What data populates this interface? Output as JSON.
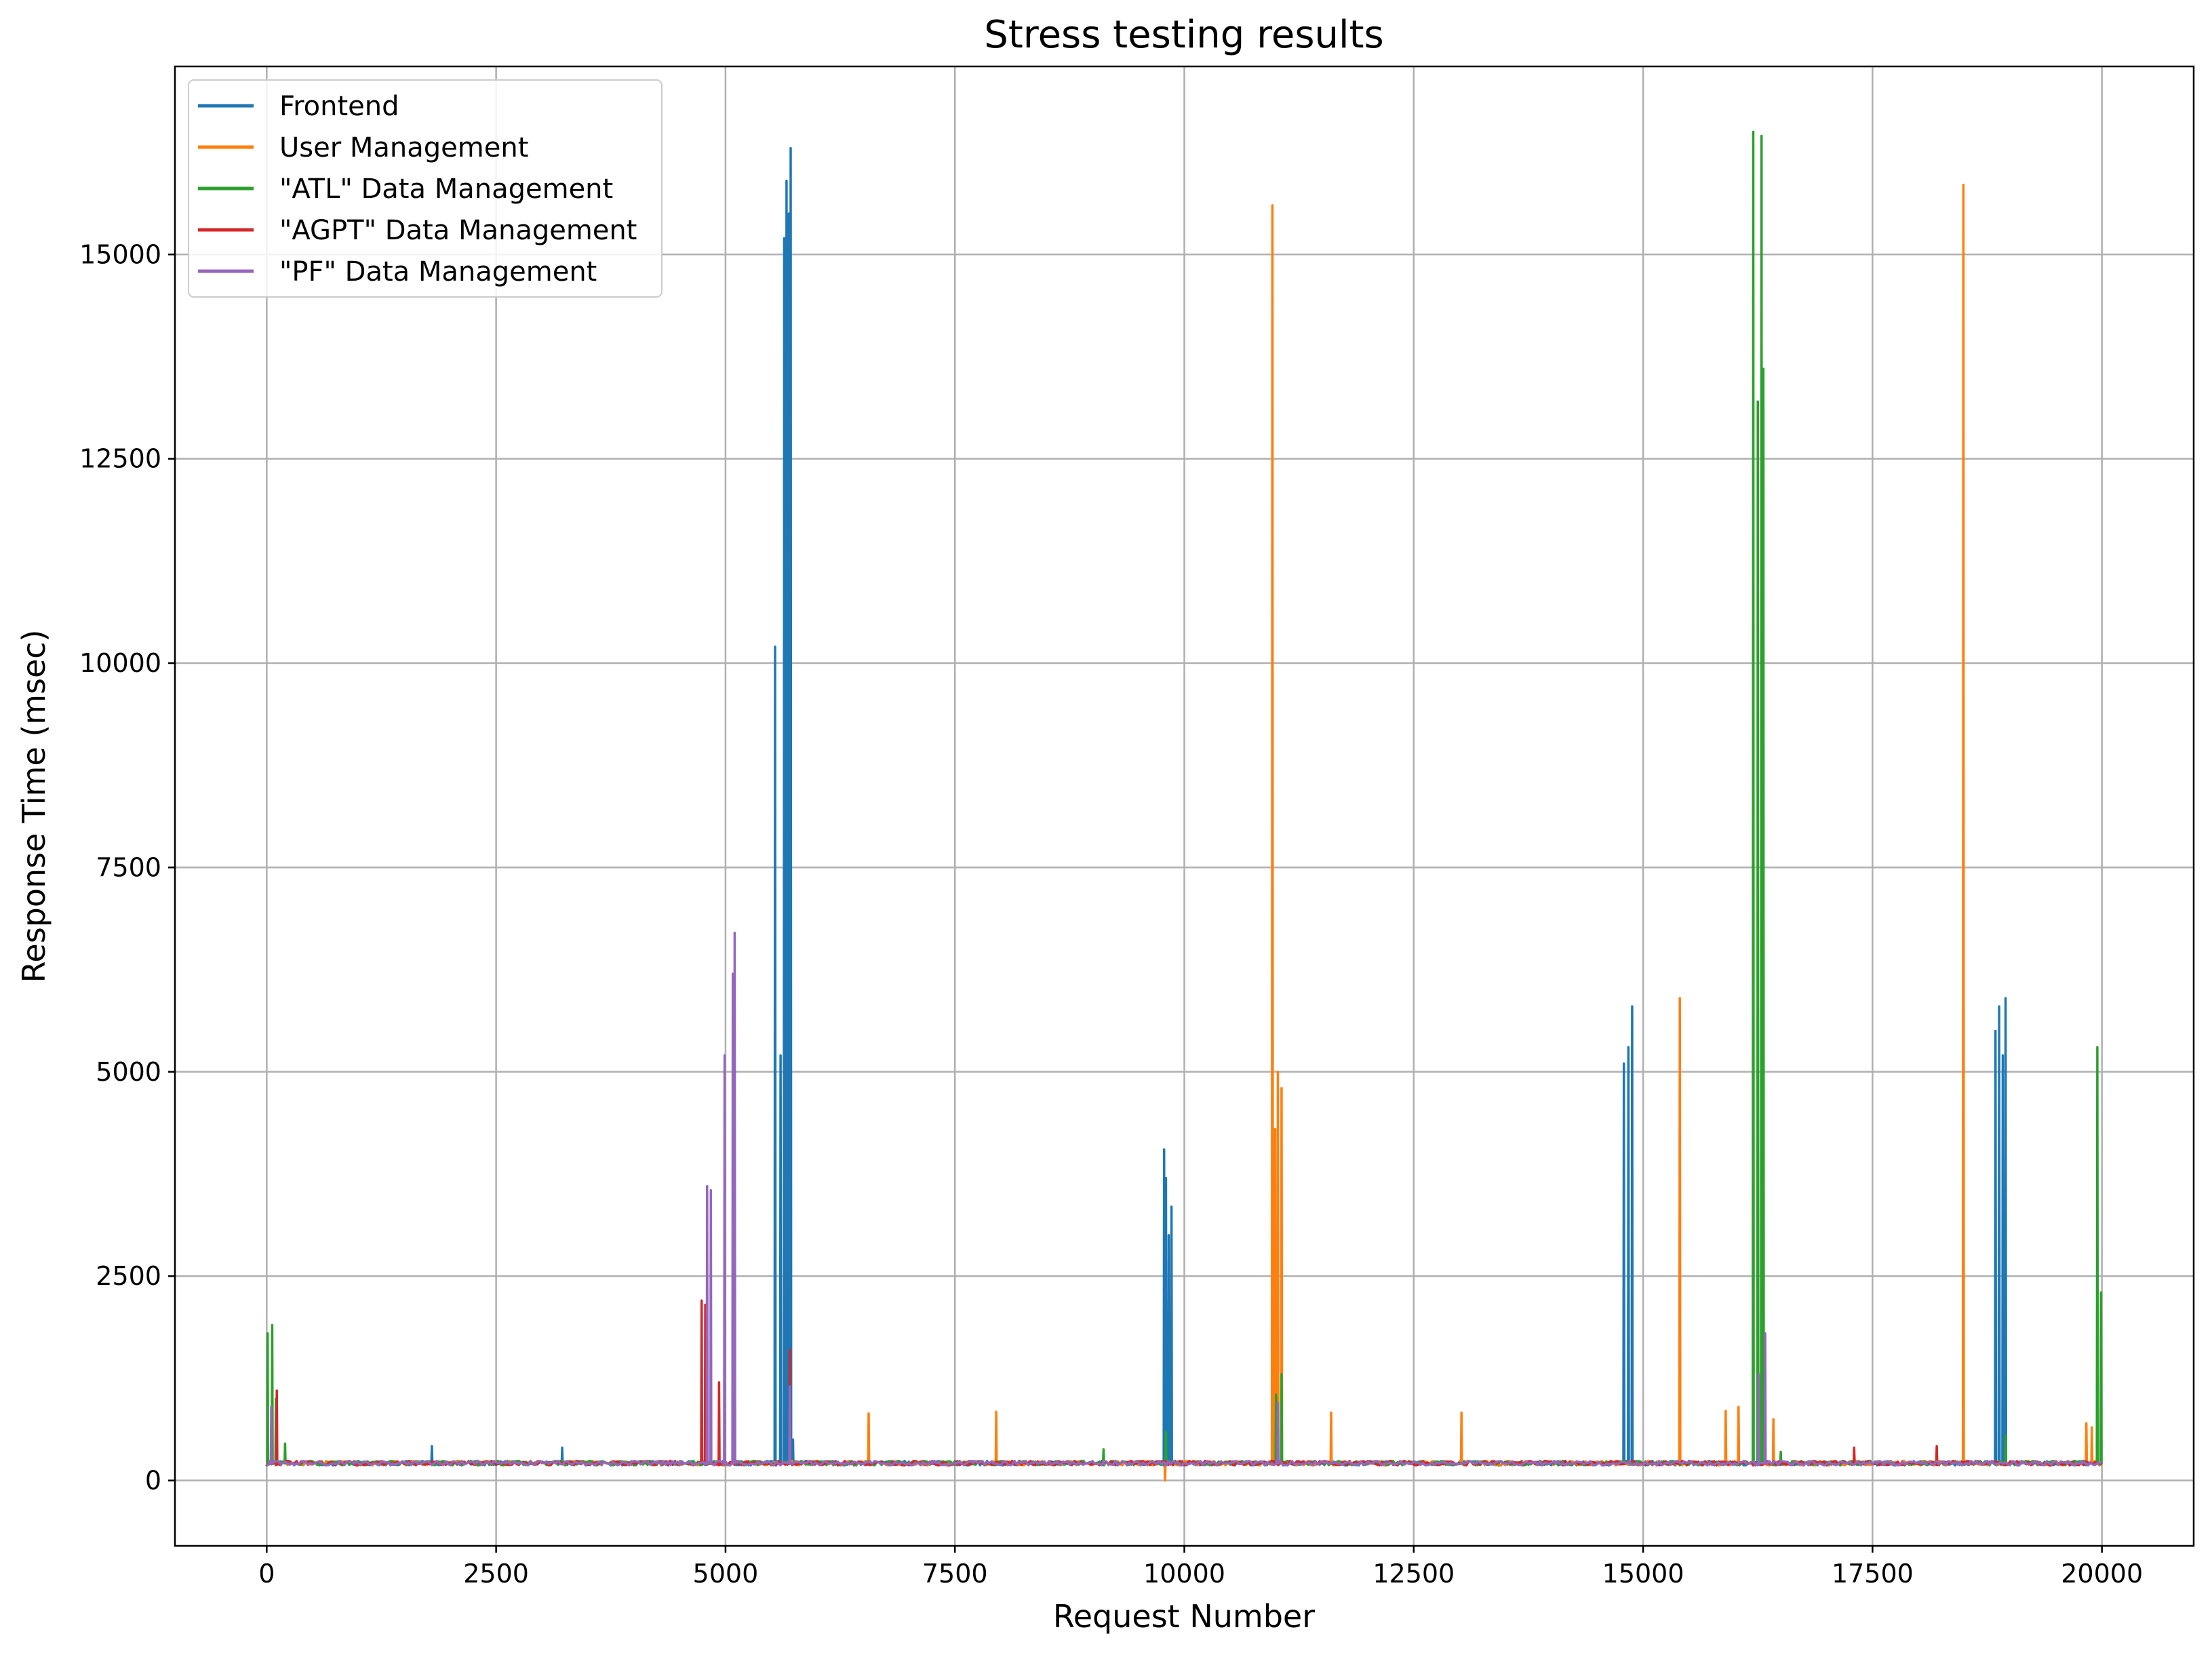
{
  "chart_data": {
    "type": "line",
    "title": "Stress testing results",
    "xlabel": "Request Number",
    "ylabel": "Response Time (msec)",
    "xlim": [
      -1000,
      21000
    ],
    "ylim": [
      -800,
      17300
    ],
    "xticks": [
      0,
      2500,
      5000,
      7500,
      10000,
      12500,
      15000,
      17500,
      20000
    ],
    "yticks": [
      0,
      2500,
      5000,
      7500,
      10000,
      12500,
      15000
    ],
    "grid": true,
    "legend_position": "top-left",
    "baseline": 210,
    "series": [
      {
        "name": "Frontend",
        "color": "#1f77b4",
        "spikes": [
          [
            1800,
            420
          ],
          [
            3220,
            400
          ],
          [
            5540,
            10200
          ],
          [
            5600,
            5200
          ],
          [
            5640,
            15200
          ],
          [
            5665,
            15900
          ],
          [
            5690,
            15500
          ],
          [
            5710,
            16300
          ],
          [
            5735,
            500
          ],
          [
            9780,
            4050
          ],
          [
            9800,
            3700
          ],
          [
            9830,
            3000
          ],
          [
            9860,
            3350
          ],
          [
            14790,
            5100
          ],
          [
            14840,
            5300
          ],
          [
            14880,
            5800
          ],
          [
            18840,
            5500
          ],
          [
            18880,
            5800
          ],
          [
            18920,
            5200
          ],
          [
            18950,
            5900
          ]
        ]
      },
      {
        "name": "User Management",
        "color": "#ff7f0e",
        "spikes": [
          [
            6560,
            820
          ],
          [
            7950,
            840
          ],
          [
            9790,
            0
          ],
          [
            10960,
            15600
          ],
          [
            10990,
            4300
          ],
          [
            11020,
            5000
          ],
          [
            11060,
            4800
          ],
          [
            11600,
            830
          ],
          [
            13020,
            830
          ],
          [
            15400,
            5900
          ],
          [
            15900,
            850
          ],
          [
            16040,
            900
          ],
          [
            16420,
            750
          ],
          [
            18490,
            15850
          ],
          [
            19830,
            700
          ],
          [
            19890,
            650
          ]
        ]
      },
      {
        "name": "\"ATL\" Data Management",
        "color": "#2ca02c",
        "spikes": [
          [
            10,
            1800
          ],
          [
            60,
            1900
          ],
          [
            100,
            1000
          ],
          [
            200,
            450
          ],
          [
            9120,
            380
          ],
          [
            9800,
            600
          ],
          [
            11000,
            1050
          ],
          [
            11060,
            1300
          ],
          [
            16200,
            16500
          ],
          [
            16250,
            13200
          ],
          [
            16290,
            16450
          ],
          [
            16310,
            13600
          ],
          [
            16500,
            350
          ],
          [
            18950,
            550
          ],
          [
            19950,
            5300
          ],
          [
            19990,
            2300
          ]
        ]
      },
      {
        "name": "\"AGPT\" Data Management",
        "color": "#d62728",
        "spikes": [
          [
            110,
            1100
          ],
          [
            4740,
            2200
          ],
          [
            4780,
            2150
          ],
          [
            4930,
            1200
          ],
          [
            5700,
            1600
          ],
          [
            17300,
            400
          ],
          [
            18200,
            420
          ]
        ]
      },
      {
        "name": "\"PF\" Data Management",
        "color": "#9467bd",
        "spikes": [
          [
            50,
            900
          ],
          [
            4800,
            3600
          ],
          [
            4840,
            3550
          ],
          [
            4990,
            5200
          ],
          [
            5080,
            6200
          ],
          [
            5100,
            6700
          ],
          [
            5700,
            1150
          ],
          [
            11020,
            950
          ],
          [
            16260,
            1300
          ],
          [
            16330,
            1800
          ]
        ]
      }
    ]
  }
}
